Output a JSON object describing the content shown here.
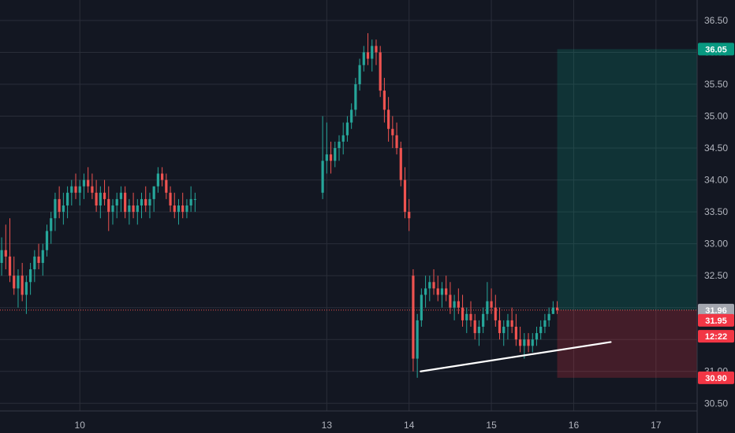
{
  "chart_data": {
    "type": "candlestick",
    "y_range": [
      30.38,
      36.82
    ],
    "x_range": [
      9.03,
      17.5
    ],
    "y_ticks": [
      "30.50",
      "31.00",
      "31.50",
      "32.00",
      "32.50",
      "33.00",
      "33.50",
      "34.00",
      "34.50",
      "35.00",
      "35.50",
      "36.00",
      "36.50"
    ],
    "x_ticks": [
      {
        "label": "10",
        "x": 10
      },
      {
        "label": "13",
        "x": 13
      },
      {
        "label": "14",
        "x": 14
      },
      {
        "label": "15",
        "x": 15
      },
      {
        "label": "16",
        "x": 16
      },
      {
        "label": "17",
        "x": 17
      }
    ],
    "candles": [
      [
        9.05,
        32.7,
        33.1,
        32.5,
        32.9
      ],
      [
        9.1,
        32.9,
        33.3,
        32.6,
        32.8
      ],
      [
        9.15,
        32.8,
        33.4,
        32.4,
        32.5
      ],
      [
        9.2,
        32.5,
        32.8,
        32.2,
        32.3
      ],
      [
        9.25,
        32.3,
        32.6,
        32.0,
        32.5
      ],
      [
        9.3,
        32.5,
        32.7,
        32.1,
        32.2
      ],
      [
        9.35,
        32.2,
        32.5,
        31.9,
        32.4
      ],
      [
        9.4,
        32.4,
        32.7,
        32.2,
        32.6
      ],
      [
        9.45,
        32.6,
        32.9,
        32.4,
        32.8
      ],
      [
        9.5,
        32.8,
        33.0,
        32.6,
        32.7
      ],
      [
        9.55,
        32.7,
        33.0,
        32.5,
        32.9
      ],
      [
        9.6,
        32.9,
        33.3,
        32.8,
        33.2
      ],
      [
        9.65,
        33.2,
        33.5,
        33.0,
        33.4
      ],
      [
        9.7,
        33.4,
        33.8,
        33.2,
        33.7
      ],
      [
        9.75,
        33.7,
        33.9,
        33.4,
        33.5
      ],
      [
        9.8,
        33.5,
        33.8,
        33.3,
        33.6
      ],
      [
        9.85,
        33.6,
        33.9,
        33.4,
        33.8
      ],
      [
        9.9,
        33.8,
        34.0,
        33.6,
        33.9
      ],
      [
        9.95,
        33.9,
        34.1,
        33.7,
        33.8
      ],
      [
        10.0,
        33.8,
        34.0,
        33.6,
        33.9
      ],
      [
        10.05,
        33.9,
        34.1,
        33.7,
        34.0
      ],
      [
        10.1,
        34.0,
        34.2,
        33.8,
        33.9
      ],
      [
        10.15,
        33.9,
        34.1,
        33.7,
        33.8
      ],
      [
        10.2,
        33.8,
        34.0,
        33.5,
        33.6
      ],
      [
        10.25,
        33.6,
        33.9,
        33.4,
        33.8
      ],
      [
        10.3,
        33.8,
        34.0,
        33.6,
        33.7
      ],
      [
        10.35,
        33.7,
        33.9,
        33.2,
        33.5
      ],
      [
        10.4,
        33.5,
        33.7,
        33.3,
        33.6
      ],
      [
        10.45,
        33.6,
        33.8,
        33.4,
        33.7
      ],
      [
        10.5,
        33.7,
        33.9,
        33.5,
        33.8
      ],
      [
        10.55,
        33.8,
        33.9,
        33.4,
        33.5
      ],
      [
        10.6,
        33.5,
        33.7,
        33.3,
        33.6
      ],
      [
        10.65,
        33.6,
        33.8,
        33.4,
        33.5
      ],
      [
        10.7,
        33.5,
        33.7,
        33.3,
        33.6
      ],
      [
        10.75,
        33.6,
        33.8,
        33.4,
        33.7
      ],
      [
        10.8,
        33.7,
        33.9,
        33.5,
        33.6
      ],
      [
        10.85,
        33.6,
        33.8,
        33.4,
        33.7
      ],
      [
        10.9,
        33.7,
        33.9,
        33.5,
        33.9
      ],
      [
        10.95,
        33.9,
        34.2,
        33.8,
        34.1
      ],
      [
        11.0,
        34.1,
        34.2,
        33.9,
        34.0
      ],
      [
        11.05,
        34.0,
        34.1,
        33.7,
        33.8
      ],
      [
        11.1,
        33.8,
        33.9,
        33.5,
        33.6
      ],
      [
        11.15,
        33.6,
        33.8,
        33.4,
        33.5
      ],
      [
        11.2,
        33.5,
        33.7,
        33.3,
        33.6
      ],
      [
        11.25,
        33.6,
        33.8,
        33.4,
        33.5
      ],
      [
        11.3,
        33.5,
        33.7,
        33.4,
        33.6
      ],
      [
        11.35,
        33.6,
        33.9,
        33.5,
        33.7
      ],
      [
        11.4,
        33.7,
        33.8,
        33.5,
        33.7
      ],
      [
        12.95,
        33.8,
        35.0,
        33.7,
        34.3
      ],
      [
        13.0,
        34.3,
        34.9,
        34.1,
        34.4
      ],
      [
        13.05,
        34.4,
        34.6,
        34.1,
        34.3
      ],
      [
        13.1,
        34.3,
        34.6,
        34.2,
        34.5
      ],
      [
        13.15,
        34.5,
        34.7,
        34.3,
        34.6
      ],
      [
        13.2,
        34.6,
        34.9,
        34.4,
        34.7
      ],
      [
        13.25,
        34.7,
        35.0,
        34.6,
        34.9
      ],
      [
        13.3,
        34.9,
        35.2,
        34.8,
        35.1
      ],
      [
        13.35,
        35.1,
        35.6,
        35.0,
        35.5
      ],
      [
        13.4,
        35.5,
        35.9,
        35.4,
        35.8
      ],
      [
        13.45,
        35.8,
        36.1,
        35.7,
        36.0
      ],
      [
        13.5,
        36.0,
        36.3,
        35.8,
        35.9
      ],
      [
        13.55,
        35.9,
        36.2,
        35.7,
        36.1
      ],
      [
        13.6,
        36.1,
        36.2,
        35.8,
        36.0
      ],
      [
        13.65,
        36.0,
        36.1,
        35.3,
        35.4
      ],
      [
        13.7,
        35.4,
        35.6,
        34.9,
        35.1
      ],
      [
        13.75,
        35.1,
        35.3,
        34.6,
        34.8
      ],
      [
        13.8,
        34.8,
        35.0,
        34.5,
        34.7
      ],
      [
        13.85,
        34.7,
        34.9,
        34.4,
        34.5
      ],
      [
        13.9,
        34.5,
        34.6,
        33.9,
        34.0
      ],
      [
        13.95,
        34.0,
        34.2,
        33.4,
        33.5
      ],
      [
        14.0,
        33.5,
        33.7,
        33.2,
        33.4
      ],
      [
        14.05,
        32.5,
        32.6,
        31.0,
        31.2
      ],
      [
        14.1,
        31.2,
        31.9,
        30.9,
        31.8
      ],
      [
        14.15,
        31.8,
        32.3,
        31.7,
        32.2
      ],
      [
        14.2,
        32.2,
        32.5,
        32.0,
        32.3
      ],
      [
        14.25,
        32.3,
        32.5,
        32.1,
        32.4
      ],
      [
        14.3,
        32.4,
        32.6,
        32.2,
        32.3
      ],
      [
        14.35,
        32.3,
        32.5,
        32.1,
        32.2
      ],
      [
        14.4,
        32.2,
        32.4,
        32.0,
        32.3
      ],
      [
        14.45,
        32.3,
        32.5,
        32.1,
        32.2
      ],
      [
        14.5,
        32.2,
        32.4,
        31.9,
        32.0
      ],
      [
        14.55,
        32.0,
        32.2,
        31.8,
        32.1
      ],
      [
        14.6,
        32.1,
        32.3,
        31.9,
        32.0
      ],
      [
        14.65,
        32.0,
        32.2,
        31.7,
        31.8
      ],
      [
        14.7,
        31.8,
        32.0,
        31.6,
        31.9
      ],
      [
        14.75,
        31.9,
        32.1,
        31.7,
        31.8
      ],
      [
        14.8,
        31.8,
        31.9,
        31.5,
        31.6
      ],
      [
        14.85,
        31.6,
        31.8,
        31.4,
        31.7
      ],
      [
        14.9,
        31.7,
        32.0,
        31.6,
        31.9
      ],
      [
        14.95,
        31.9,
        32.4,
        31.8,
        32.1
      ],
      [
        15.0,
        32.1,
        32.3,
        31.9,
        32.0
      ],
      [
        15.05,
        32.0,
        32.2,
        31.7,
        31.8
      ],
      [
        15.1,
        31.8,
        32.0,
        31.5,
        31.6
      ],
      [
        15.15,
        31.6,
        31.8,
        31.4,
        31.7
      ],
      [
        15.2,
        31.7,
        31.9,
        31.5,
        31.8
      ],
      [
        15.25,
        31.8,
        32.0,
        31.6,
        31.7
      ],
      [
        15.3,
        31.7,
        31.9,
        31.4,
        31.5
      ],
      [
        15.35,
        31.5,
        31.7,
        31.3,
        31.4
      ],
      [
        15.4,
        31.4,
        31.6,
        31.2,
        31.5
      ],
      [
        15.45,
        31.5,
        31.6,
        31.3,
        31.4
      ],
      [
        15.5,
        31.4,
        31.6,
        31.3,
        31.5
      ],
      [
        15.55,
        31.5,
        31.7,
        31.4,
        31.6
      ],
      [
        15.6,
        31.6,
        31.8,
        31.5,
        31.7
      ],
      [
        15.65,
        31.7,
        31.9,
        31.6,
        31.8
      ],
      [
        15.7,
        31.8,
        32.0,
        31.7,
        31.9
      ],
      [
        15.75,
        31.9,
        32.1,
        31.9,
        32.0
      ],
      [
        15.8,
        32.0,
        32.1,
        31.9,
        31.96
      ]
    ],
    "trendline": {
      "x1": 14.14,
      "y1": 31.0,
      "x2": 16.45,
      "y2": 31.46
    },
    "position": {
      "x_start": 15.8,
      "x_end": 17.5,
      "entry": 31.96,
      "target": 36.05,
      "stop": 30.9
    },
    "current_price": 31.96,
    "price_tags": [
      {
        "label": "36.05",
        "price": 36.05,
        "color": "#089981",
        "text_color": "#ffffff"
      },
      {
        "label": "31.96",
        "price": 31.96,
        "color": "#a3a6af",
        "text_color": "#131722"
      },
      {
        "label": "31.95",
        "price": 31.8,
        "color": "#f23645",
        "text_color": "#ffffff"
      },
      {
        "label": "12:22",
        "price": 31.55,
        "color": "#f23645",
        "text_color": "#ffffff"
      },
      {
        "label": "30.90",
        "price": 30.9,
        "color": "#f23645",
        "text_color": "#ffffff"
      }
    ],
    "colors": {
      "up": "#26a69a",
      "down": "#ef5350",
      "background": "#131722",
      "grid": "#2a2e39"
    }
  }
}
